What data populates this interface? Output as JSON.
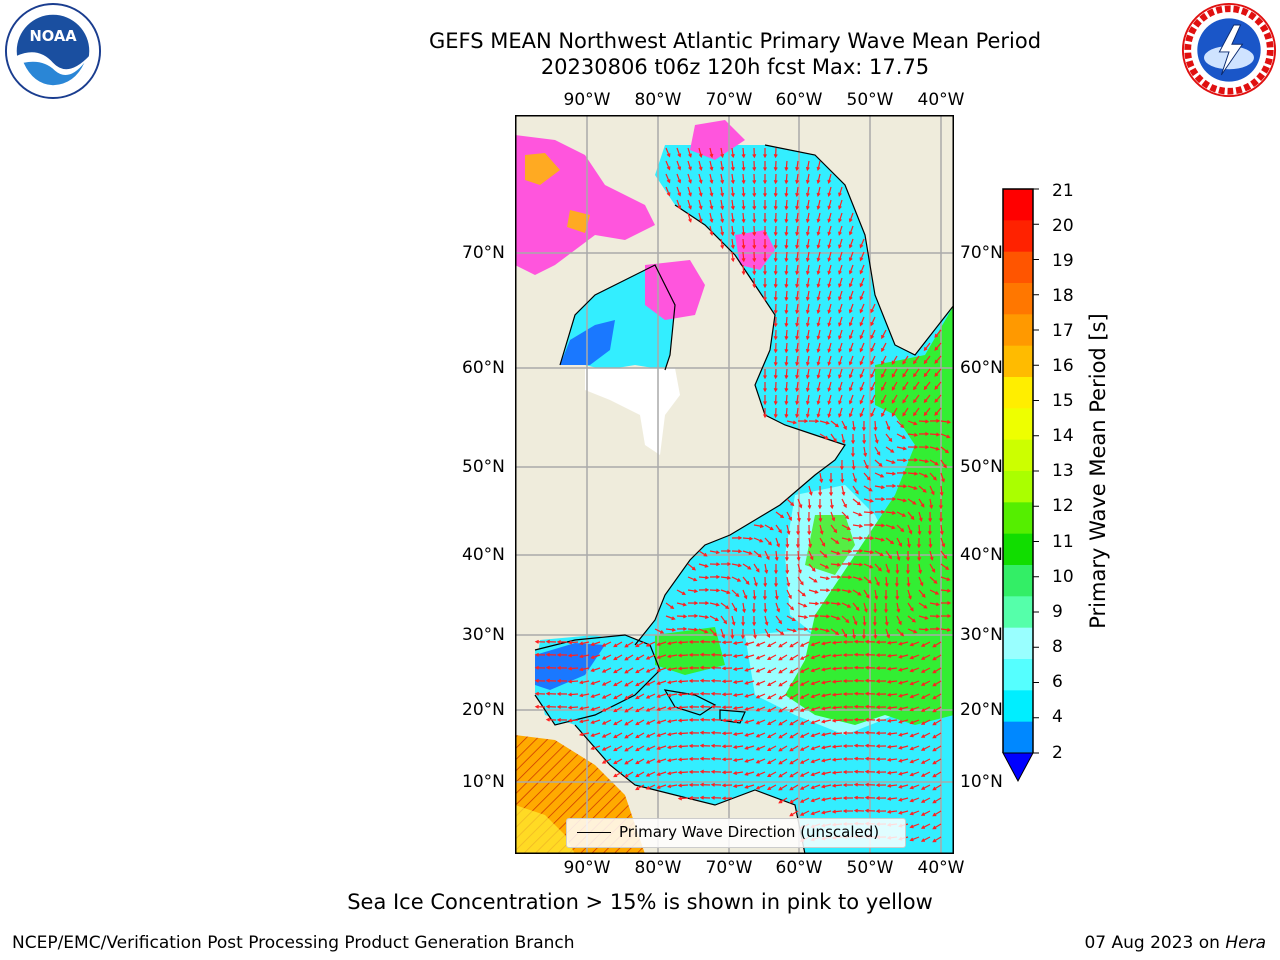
{
  "title_line1": "GEFS MEAN Northwest Atlantic Primary Wave Mean Period",
  "title_line2": "20230806 t06z 120h fcst   Max: 17.75",
  "logos": {
    "left": {
      "icon": "noaa-logo",
      "text": "NOAA",
      "ring_text": "NATIONAL OCEANIC AND ATMOSPHERIC ADMINISTRATION · U.S. DEPARTMENT OF COMMERCE"
    },
    "right": {
      "icon": "nws-logo",
      "ring_text": "NATIONAL WEATHER SERVICE"
    }
  },
  "map": {
    "lon_ticks": [
      "90°W",
      "80°W",
      "70°W",
      "60°W",
      "50°W",
      "40°W"
    ],
    "lat_ticks": [
      "70°N",
      "60°N",
      "50°N",
      "40°N",
      "30°N",
      "20°N",
      "10°N"
    ],
    "ocean_colors": {
      "low": "#33eeff",
      "mid": "#99ffff",
      "high": "#33ee33",
      "land": "#efecdc",
      "ice": "#ff55dd",
      "tropics": "#ffaa00"
    }
  },
  "colorbar": {
    "label": "Primary Wave Mean Period [s]",
    "ticks": [
      "21",
      "20",
      "19",
      "18",
      "17",
      "16",
      "15",
      "14",
      "13",
      "12",
      "11",
      "10",
      "9",
      "8",
      "6",
      "4",
      "2"
    ],
    "colors": [
      "#ff0000",
      "#ff2200",
      "#ff5500",
      "#ff7700",
      "#ff9900",
      "#ffbb00",
      "#ffee00",
      "#eeff00",
      "#ccff00",
      "#aaff00",
      "#55ee00",
      "#11dd00",
      "#33ee66",
      "#55ffaa",
      "#99ffff",
      "#55ffff",
      "#00eeff",
      "#0088ff"
    ],
    "under_color": "#0000ff"
  },
  "legend": {
    "text": "Primary Wave Direction (unscaled)"
  },
  "note": "Sea Ice Concentration > 15% is shown in pink to yellow",
  "footer": {
    "left": "NCEP/EMC/Verification Post Processing Product Generation Branch",
    "right_prefix": "07 Aug 2023 on ",
    "right_italic": "Hera"
  }
}
